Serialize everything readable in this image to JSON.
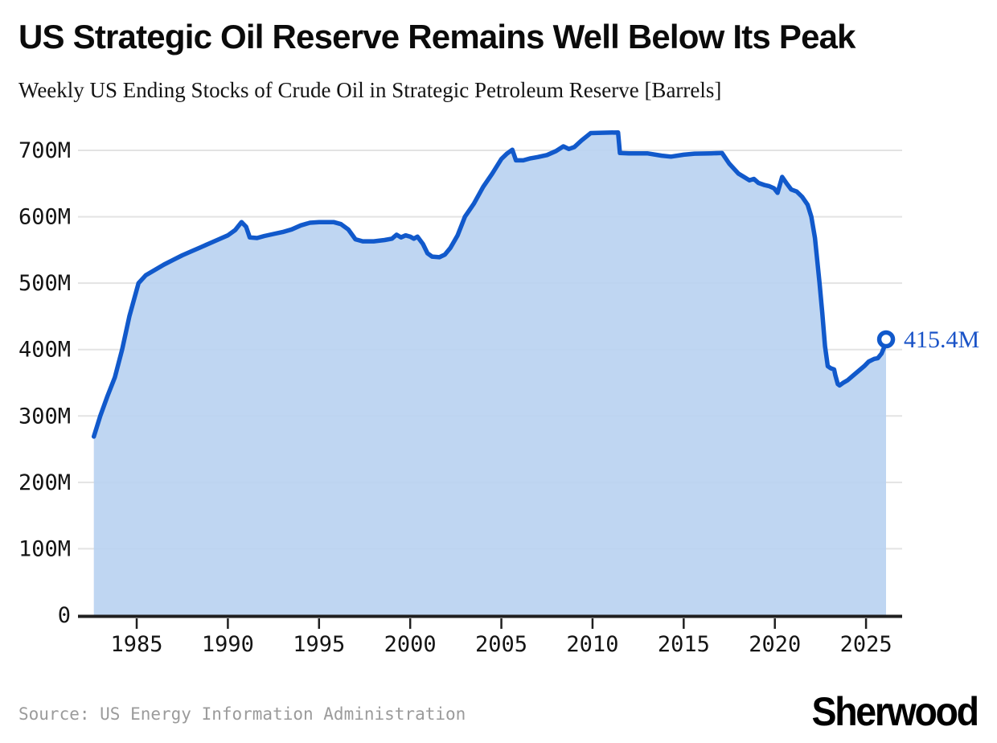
{
  "header": {
    "title": "US Strategic Oil Reserve Remains Well Below Its Peak",
    "subtitle": "Weekly US Ending Stocks of Crude Oil in Strategic Petroleum Reserve [Barrels]"
  },
  "footer": {
    "source": "Source: US Energy Information Administration",
    "brand": "Sherwood"
  },
  "colors": {
    "line": "#1159cb",
    "area_fill": "#b8d2f1",
    "grid": "#e3e3e3",
    "axis": "#1f1f1f",
    "tick_text": "#141414",
    "end_label": "#1a53c7",
    "source_text": "#9b9b9b"
  },
  "chart_data": {
    "type": "area",
    "title": "US Strategic Oil Reserve Remains Well Below Its Peak",
    "subtitle": "Weekly US Ending Stocks of Crude Oil in Strategic Petroleum Reserve [Barrels]",
    "xlabel": "",
    "ylabel": "Barrels",
    "unit": "million barrels",
    "xlim": [
      1981.78,
      2026.98
    ],
    "ylim": [
      0,
      700
    ],
    "grid": "horizontal",
    "legend": "none",
    "xtick_values": [
      1985,
      1990,
      1995,
      2000,
      2005,
      2010,
      2015,
      2020,
      2025
    ],
    "xtick_labels": [
      "1985",
      "1990",
      "1995",
      "2000",
      "2005",
      "2010",
      "2015",
      "2020",
      "2025"
    ],
    "ytick_values": [
      0,
      100,
      200,
      300,
      400,
      500,
      600,
      700
    ],
    "ytick_labels": [
      "0",
      "100M",
      "200M",
      "300M",
      "400M",
      "500M",
      "600M",
      "700M"
    ],
    "end_label": "415.4M",
    "end_value": 415.4,
    "x": [
      1982.65,
      1983.0,
      1983.4,
      1983.8,
      1984.2,
      1984.6,
      1985.1,
      1985.5,
      1986.0,
      1986.5,
      1987.0,
      1987.5,
      1988.0,
      1988.5,
      1989.0,
      1989.5,
      1990.0,
      1990.4,
      1990.75,
      1991.0,
      1991.2,
      1991.6,
      1992.0,
      1992.5,
      1993.0,
      1993.5,
      1994.0,
      1994.5,
      1995.0,
      1995.8,
      1996.2,
      1996.6,
      1997.0,
      1997.4,
      1998.0,
      1998.6,
      1999.0,
      1999.25,
      1999.5,
      1999.75,
      2000.0,
      2000.2,
      2000.4,
      2000.7,
      2000.95,
      2001.2,
      2001.6,
      2001.9,
      2002.2,
      2002.6,
      2003.0,
      2003.5,
      2004.0,
      2004.5,
      2005.0,
      2005.3,
      2005.6,
      2005.8,
      2006.2,
      2006.6,
      2007.0,
      2007.5,
      2008.0,
      2008.4,
      2008.7,
      2009.0,
      2009.4,
      2009.9,
      2010.5,
      2011.4,
      2011.5,
      2012.0,
      2013.0,
      2013.8,
      2014.3,
      2015.0,
      2015.6,
      2016.5,
      2017.1,
      2017.5,
      2018.0,
      2018.3,
      2018.6,
      2018.85,
      2019.1,
      2019.4,
      2019.7,
      2019.95,
      2020.15,
      2020.4,
      2020.65,
      2020.9,
      2021.2,
      2021.5,
      2021.8,
      2022.0,
      2022.2,
      2022.45,
      2022.6,
      2022.75,
      2022.9,
      2023.05,
      2023.25,
      2023.32,
      2023.45,
      2023.55,
      2023.75,
      2024.0,
      2024.3,
      2024.6,
      2024.9,
      2025.15,
      2025.45,
      2025.65,
      2025.85,
      2026.0,
      2026.1
    ],
    "y": [
      269,
      300,
      330,
      358,
      400,
      450,
      500,
      512,
      520,
      528,
      535,
      542,
      548,
      554,
      560,
      566,
      572,
      580,
      592,
      585,
      569,
      568,
      571,
      574,
      577,
      581,
      587,
      591,
      592,
      592,
      589,
      581,
      566,
      563,
      563,
      565,
      567,
      573,
      569,
      572,
      570,
      567,
      570,
      559,
      545,
      540,
      539,
      543,
      553,
      572,
      600,
      620,
      645,
      665,
      687,
      695,
      701,
      685,
      685,
      688,
      690,
      693,
      699,
      706,
      702,
      705,
      715,
      726,
      726.5,
      727,
      696,
      695.5,
      695.5,
      692,
      690.5,
      693.5,
      695,
      695.5,
      696,
      680,
      665,
      660,
      655,
      657,
      651,
      648,
      646,
      643,
      636,
      660,
      650,
      641,
      638,
      630,
      618,
      600,
      568,
      500,
      455,
      405,
      375,
      372,
      370,
      361,
      348,
      346,
      350,
      354,
      361,
      368,
      375,
      382,
      386,
      387,
      394,
      404,
      415.4
    ]
  }
}
